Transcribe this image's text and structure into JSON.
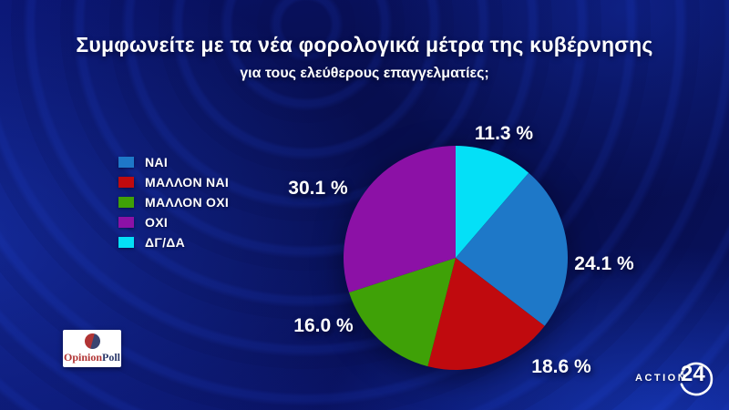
{
  "header": {
    "title": "Συμφωνείτε με τα νέα φορολογικά μέτρα της κυβέρνησης",
    "subtitle": "για τους ελεύθερους επαγγελματίες;"
  },
  "chart_data": {
    "type": "pie",
    "title": "Συμφωνείτε με τα νέα φορολογικά μέτρα της κυβέρνησης για τους ελεύθερους επαγγελματίες;",
    "start_angle_deg": 0,
    "direction": "clockwise",
    "legend_position": "left",
    "slices": [
      {
        "label": "ΔΓ/ΔΑ",
        "value": 11.3,
        "display": "11.3 %",
        "color": "#04e0f7"
      },
      {
        "label": "ΝΑΙ",
        "value": 24.1,
        "display": "24.1 %",
        "color": "#1e78c8"
      },
      {
        "label": "ΜΑΛΛΟΝ ΝΑΙ",
        "value": 18.6,
        "display": "18.6 %",
        "color": "#c00a0e"
      },
      {
        "label": "ΜΑΛΛΟΝ ΟΧΙ",
        "value": 16.0,
        "display": "16.0 %",
        "color": "#3fa107"
      },
      {
        "label": "ΟΧΙ",
        "value": 30.1,
        "display": "30.1 %",
        "color": "#8c11a6"
      }
    ],
    "legend": [
      {
        "label": "ΝΑΙ",
        "color": "#1e78c8"
      },
      {
        "label": "ΜΑΛΛΟΝ ΝΑΙ",
        "color": "#c00a0e"
      },
      {
        "label": "ΜΑΛΛΟΝ ΟΧΙ",
        "color": "#3fa107"
      },
      {
        "label": "ΟΧΙ",
        "color": "#8c11a6"
      },
      {
        "label": "ΔΓ/ΔΑ",
        "color": "#04e0f7"
      }
    ]
  },
  "logos": {
    "opinion_poll": {
      "text_primary": "Opinion",
      "text_secondary": "Poll"
    },
    "action24": {
      "word": "ACTION",
      "number": "24"
    }
  }
}
